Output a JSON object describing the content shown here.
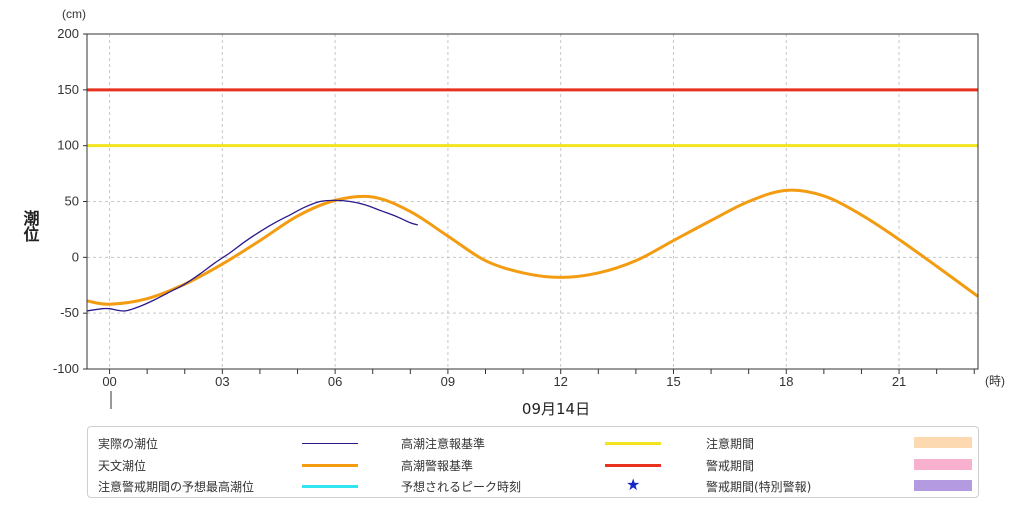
{
  "chart_data": {
    "type": "line",
    "ylabel": "潮位",
    "yunit": "(cm)",
    "xunit": "(時)",
    "xdate": "09月14日",
    "ylim": [
      -100,
      200
    ],
    "yticks": [
      -100,
      -50,
      0,
      50,
      100,
      150,
      200
    ],
    "xlim": [
      -0.6,
      23.1
    ],
    "xticks": [
      "00",
      "03",
      "06",
      "09",
      "12",
      "15",
      "18",
      "21"
    ],
    "grid": true,
    "series": [
      {
        "name": "実際の潮位",
        "color": "#2a1a8c",
        "x": [
          -0.6,
          -0.2,
          0,
          0.4,
          0.8,
          1.2,
          1.6,
          2,
          2.4,
          2.8,
          3.2,
          3.6,
          4,
          4.4,
          4.8,
          5.2,
          5.6,
          6,
          6.4,
          6.8,
          7.2,
          7.6,
          8,
          8.2
        ],
        "y": [
          -48,
          -46,
          -46,
          -48,
          -44,
          -38,
          -31,
          -24,
          -15,
          -5,
          4,
          14,
          23,
          31,
          38,
          45,
          50,
          51,
          50,
          47,
          42,
          37,
          31,
          29
        ]
      },
      {
        "name": "天文潮位",
        "color": "#f39c12",
        "x": [
          -0.6,
          0,
          1,
          2,
          3,
          4,
          5,
          6,
          7,
          8,
          9,
          10,
          11,
          12,
          13,
          14,
          15,
          16,
          17,
          18,
          19,
          20,
          21,
          22,
          23.1
        ],
        "y": [
          -39,
          -42,
          -37,
          -24,
          -6,
          15,
          37,
          51,
          54,
          41,
          19,
          -3,
          -14,
          -18,
          -14,
          -3,
          15,
          33,
          50,
          60,
          55,
          38,
          16,
          -8,
          -35
        ]
      }
    ],
    "reference_lines": [
      {
        "name": "高潮注意報基準",
        "value": 100,
        "color": "#f2e41e"
      },
      {
        "name": "高潮警報基準",
        "value": 150,
        "color": "#e8321e"
      }
    ]
  },
  "legend": {
    "items": [
      {
        "label": "実際の潮位",
        "kind": "thin-line",
        "color": "#2a1a8c"
      },
      {
        "label": "天文潮位",
        "kind": "thick-line",
        "color": "#f39c12"
      },
      {
        "label": "注意警戒期間の予想最高潮位",
        "kind": "thick-line",
        "color": "#32e6f0"
      },
      {
        "label": "高潮注意報基準",
        "kind": "thick-line",
        "color": "#f2e41e"
      },
      {
        "label": "高潮警報基準",
        "kind": "thick-line",
        "color": "#e8321e"
      },
      {
        "label": "予想されるピーク時刻",
        "kind": "star",
        "color": "#1428c8"
      },
      {
        "label": "注意期間",
        "kind": "box",
        "color": "#fcd9b0"
      },
      {
        "label": "警戒期間",
        "kind": "box",
        "color": "#f8b0cf"
      },
      {
        "label": "警戒期間(特別警報)",
        "kind": "box",
        "color": "#b49ae0"
      }
    ]
  }
}
